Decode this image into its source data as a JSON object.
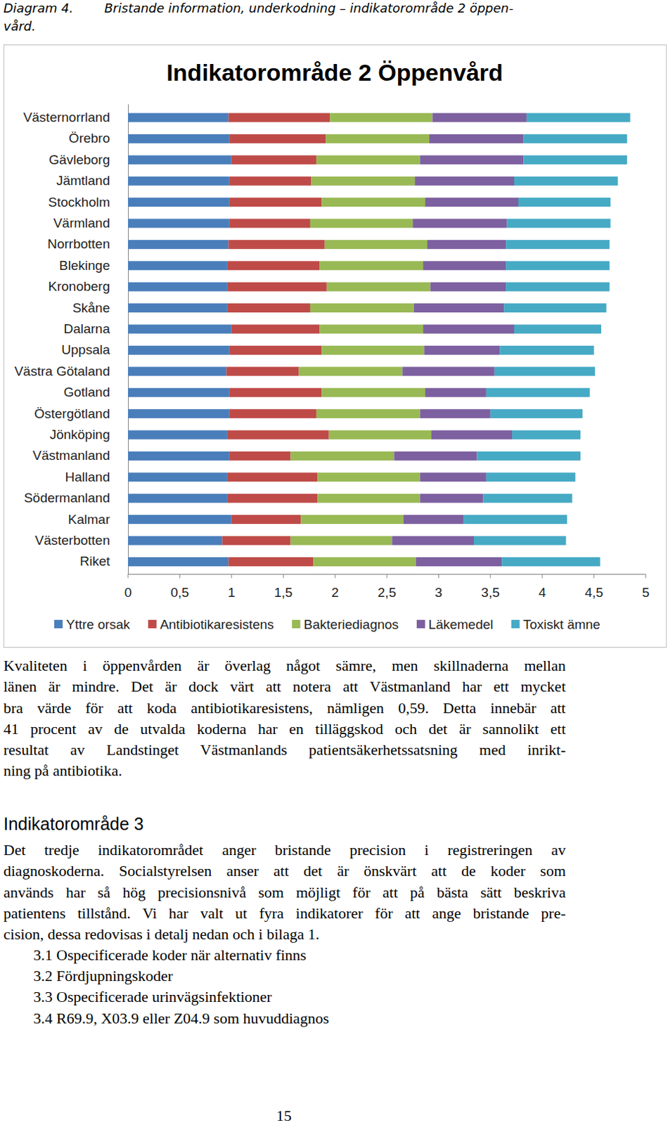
{
  "header": {
    "label": "Diagram 4.",
    "title": [
      "Bristande information, underkodning – indikatorområde 2 öppen-",
      "vård."
    ]
  },
  "chart_data": {
    "type": "bar",
    "title": "Indikatorområde 2 Öppenvård",
    "orientation": "horizontal",
    "stacked": true,
    "grid": false,
    "legend": "bottom",
    "categories": [
      "Västernorrland",
      "Örebro",
      "Gävleborg",
      "Jämtland",
      "Stockholm",
      "Värmland",
      "Norrbotten",
      "Blekinge",
      "Kronoberg",
      "Skåne",
      "Dalarna",
      "Uppsala",
      "Västra Götaland",
      "Gotland",
      "Östergötland",
      "Jönköping",
      "Västmanland",
      "Halland",
      "Södermanland",
      "Kalmar",
      "Västerbotten",
      "Riket"
    ],
    "series": [
      {
        "name": "Yttre orsak",
        "color": "#4a7ebb",
        "values": [
          0.97,
          0.98,
          1.0,
          0.98,
          0.98,
          0.98,
          0.97,
          0.96,
          0.96,
          0.96,
          1.0,
          0.98,
          0.95,
          0.98,
          0.98,
          0.96,
          0.98,
          0.96,
          0.96,
          1.0,
          0.91,
          0.97
        ]
      },
      {
        "name": "Antibiotikaresistens",
        "color": "#be4b48",
        "values": [
          0.98,
          0.93,
          0.82,
          0.79,
          0.89,
          0.78,
          0.93,
          0.89,
          0.96,
          0.8,
          0.85,
          0.89,
          0.7,
          0.89,
          0.84,
          0.98,
          0.59,
          0.87,
          0.87,
          0.67,
          0.66,
          0.82
        ]
      },
      {
        "name": "Bakteriediagnos",
        "color": "#98b954",
        "values": [
          0.99,
          1.0,
          1.0,
          1.0,
          1.0,
          0.99,
          0.99,
          1.0,
          1.0,
          1.0,
          1.0,
          0.99,
          1.0,
          1.0,
          1.0,
          0.99,
          1.0,
          0.99,
          0.99,
          0.99,
          0.98,
          0.99
        ]
      },
      {
        "name": "Läkemedel",
        "color": "#7d60a0",
        "values": [
          0.91,
          0.91,
          1.0,
          0.96,
          0.9,
          0.91,
          0.76,
          0.8,
          0.73,
          0.87,
          0.88,
          0.73,
          0.89,
          0.59,
          0.68,
          0.78,
          0.8,
          0.64,
          0.61,
          0.58,
          0.79,
          0.83
        ]
      },
      {
        "name": "Toxiskt ämne",
        "color": "#46aac5",
        "values": [
          1.0,
          1.0,
          1.0,
          1.0,
          0.89,
          1.0,
          1.0,
          1.0,
          1.0,
          0.99,
          0.84,
          0.91,
          0.97,
          1.0,
          0.89,
          0.66,
          1.0,
          0.86,
          0.86,
          1.0,
          0.89,
          0.95
        ]
      }
    ],
    "xlim": [
      0,
      5
    ],
    "xticks": [
      0,
      {
        "value": 0.5,
        "label": "0,5"
      },
      1,
      {
        "value": 1.5,
        "label": "1,5"
      },
      2,
      {
        "value": 2.5,
        "label": "2,5"
      },
      3,
      {
        "value": 3.5,
        "label": "3,5"
      },
      4,
      {
        "value": 4.5,
        "label": "4,5"
      },
      5
    ]
  },
  "paragraph": [
    "Kvaliteten i öppenvården är överlag något sämre, men skillnaderna mellan",
    "länen är mindre. Det är dock värt att notera att Västmanland har ett mycket",
    "bra värde för att koda antibiotikaresistens, nämligen 0,59. Detta innebär att",
    "41 procent av de utvalda koderna har en tilläggskod och det är sannolikt ett",
    "resultat av Landstinget Västmanlands patientsäkerhetssatsning med inrikt-",
    "ning på antibiotika."
  ],
  "section": {
    "heading": "Indikatorområde 3",
    "lines": [
      "Det tredje indikatorområdet anger bristande precision i registreringen av",
      "diagnoskoderna. Socialstyrelsen anser att det är önskvärt att de koder som",
      "används har så hög precisionsnivå som möjligt för att på bästa sätt beskriva",
      "patientens tillstånd. Vi har valt ut fyra indikatorer för att ange bristande pre-",
      "cision, dessa redovisas i detalj nedan och i bilaga 1."
    ],
    "list": [
      "3.1 Ospecificerade koder när alternativ finns",
      "3.2 Fördjupningskoder",
      "3.3 Ospecificerade urinvägsinfektioner",
      "3.4 R69.9, X03.9 eller Z04.9 som huvuddiagnos"
    ]
  },
  "page_number": "15"
}
